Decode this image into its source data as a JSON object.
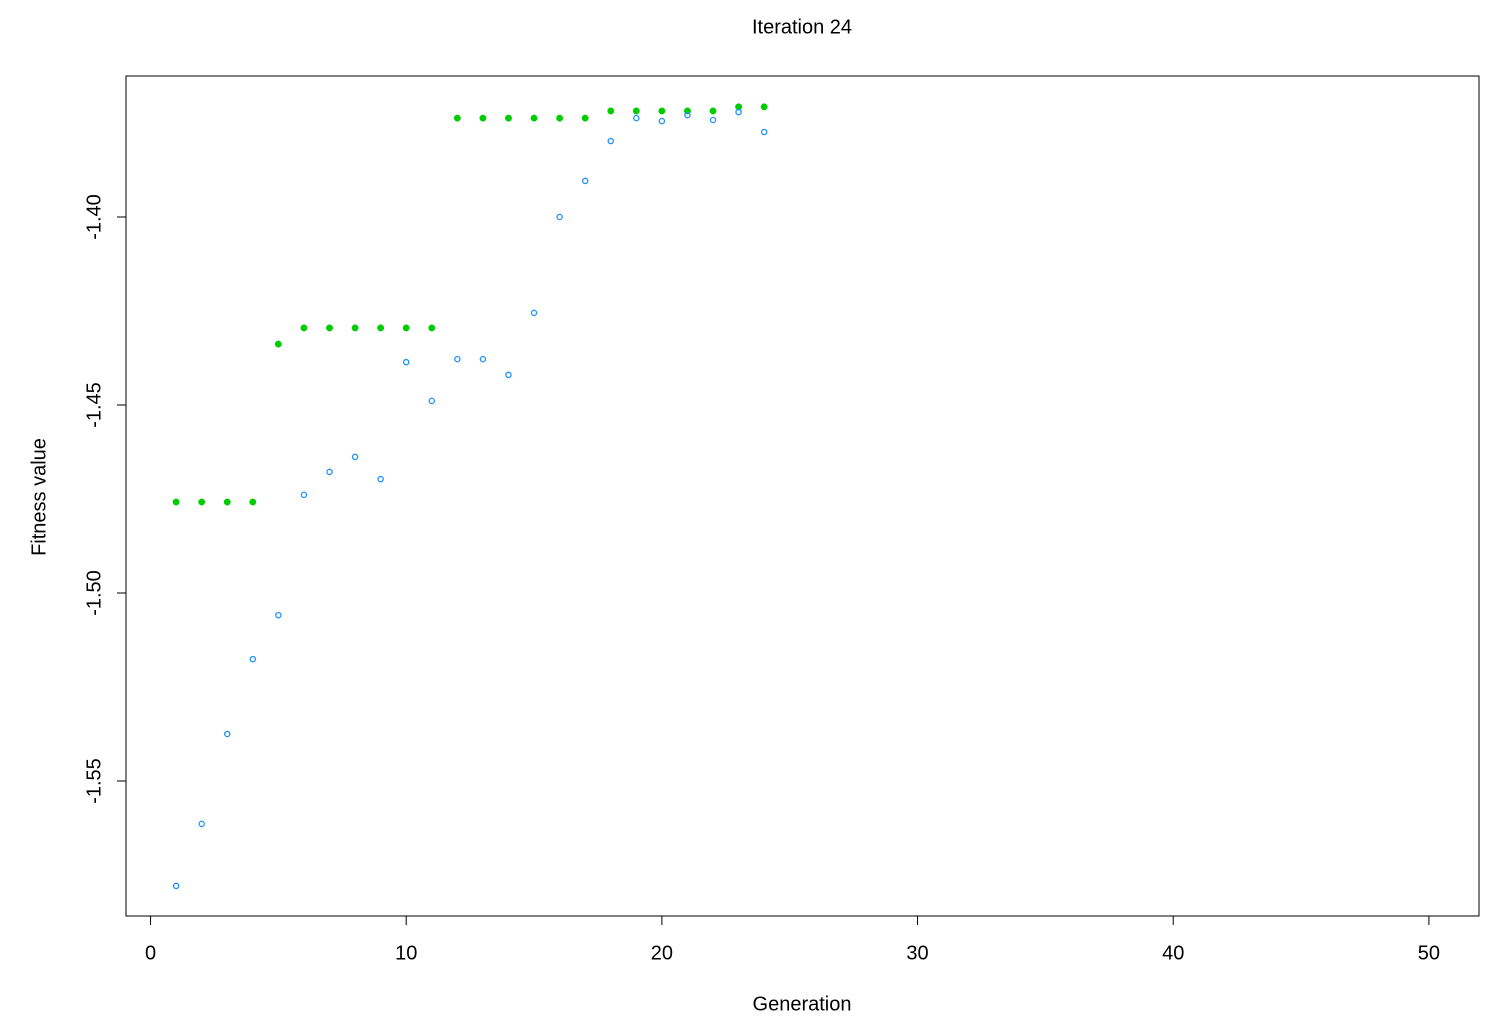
{
  "chart_data": {
    "type": "scatter",
    "title": "Iteration 24",
    "x_label": "Generation",
    "y_label": "Fitness value",
    "x": [
      1,
      2,
      3,
      4,
      5,
      6,
      7,
      8,
      9,
      10,
      11,
      12,
      13,
      14,
      15,
      16,
      17,
      18,
      19,
      20,
      21,
      22,
      23,
      24
    ],
    "series": [
      {
        "color": "#00cd00",
        "marker": "filled",
        "values": [
          -1.4758,
          -1.4758,
          -1.4758,
          -1.4758,
          -1.4338,
          -1.4295,
          -1.4295,
          -1.4295,
          -1.4295,
          -1.4295,
          -1.4295,
          -1.3737,
          -1.3737,
          -1.3737,
          -1.3737,
          -1.3737,
          -1.3737,
          -1.3718,
          -1.3718,
          -1.3718,
          -1.3718,
          -1.3718,
          -1.3707,
          -1.3707
        ]
      },
      {
        "color": "#1e90ff",
        "marker": "open",
        "values": [
          -1.5779,
          -1.5614,
          -1.5375,
          -1.5176,
          -1.5059,
          -1.4739,
          -1.4678,
          -1.4638,
          -1.4697,
          -1.4386,
          -1.4489,
          -1.4378,
          -1.4378,
          -1.442,
          -1.4255,
          -1.4,
          -1.3904,
          -1.3798,
          -1.3737,
          -1.3745,
          -1.3729,
          -1.3742,
          -1.3721,
          -1.3774
        ]
      }
    ],
    "xlim": [
      -0.96,
      51.96
    ],
    "ylim": [
      -1.5859,
      -1.3625
    ],
    "xticks": [
      0,
      10,
      20,
      30,
      40,
      50
    ],
    "yticks": [
      {
        "value": -1.55,
        "label": "-1.55"
      },
      {
        "value": -1.5,
        "label": "-1.50"
      },
      {
        "value": -1.45,
        "label": "-1.45"
      },
      {
        "value": -1.4,
        "label": "-1.40"
      }
    ]
  }
}
